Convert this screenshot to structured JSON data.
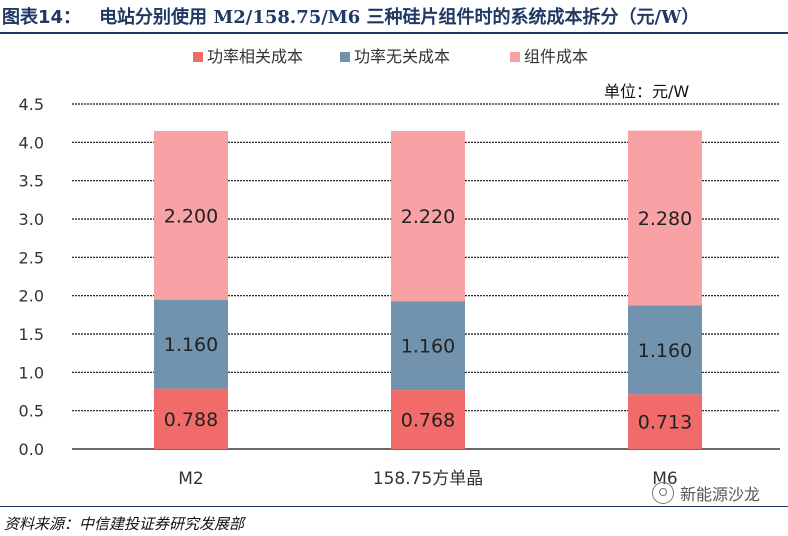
{
  "header": {
    "figure_label": "图表14：",
    "title": "电站分别使用 M2/158.75/M6 三种硅片组件时的系统成本拆分（元/W）"
  },
  "chart_data": {
    "type": "bar",
    "stacked": true,
    "categories": [
      "M2",
      "158.75方单晶",
      "M6"
    ],
    "series": [
      {
        "name": "功率相关成本",
        "values": [
          0.788,
          0.768,
          0.713
        ],
        "labels": [
          "0.788",
          "0.768",
          "0.713"
        ],
        "color": "#f26b6b"
      },
      {
        "name": "功率无关成本",
        "values": [
          1.16,
          1.16,
          1.16
        ],
        "labels": [
          "1.160",
          "1.160",
          "1.160"
        ],
        "color": "#7193ad"
      },
      {
        "name": "组件成本",
        "values": [
          2.2,
          2.22,
          2.28
        ],
        "labels": [
          "2.200",
          "2.220",
          "2.280"
        ],
        "color": "#f8a2a6"
      }
    ],
    "ylim": [
      0,
      4.5
    ],
    "yticks": [
      "0.0",
      "0.5",
      "1.0",
      "1.5",
      "2.0",
      "2.5",
      "3.0",
      "3.5",
      "4.0",
      "4.5"
    ],
    "unit_label": "单位：元/W",
    "legend_position": "top",
    "grid": true
  },
  "footer": {
    "source": "资料来源：中信建投证券研究发展部",
    "watermark": "新能源沙龙"
  }
}
